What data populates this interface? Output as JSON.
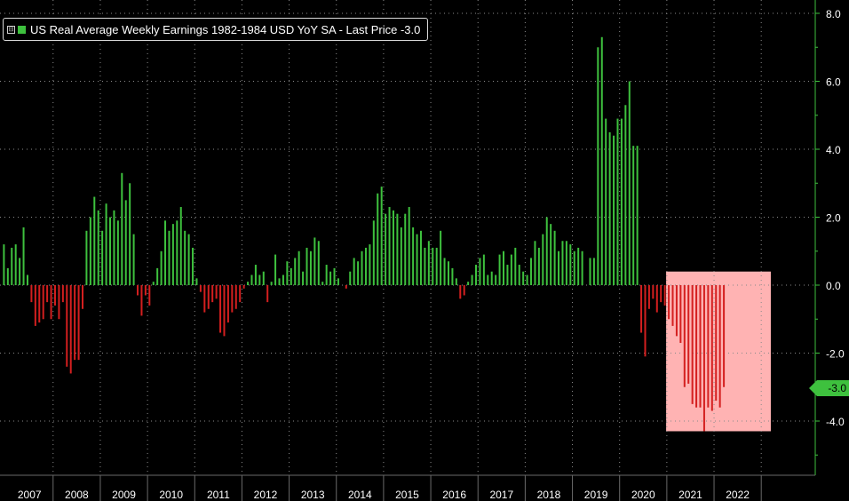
{
  "colors": {
    "positive": "#3ec13e",
    "negative": "#d41f1f",
    "highlight": "#ffb3b3",
    "axis": "#3ec13e",
    "grid": "#8a8a8a",
    "background": "#000000",
    "text": "#ffffff"
  },
  "legend": {
    "collapse_glyph": "⊟",
    "label": "US Real Average Weekly Earnings 1982-1984 USD YoY SA - Last Price -3.0"
  },
  "last_price_tag": "-3.0",
  "chart_data": {
    "type": "bar",
    "title": "",
    "xlabel": "",
    "ylabel": "",
    "ylim": [
      -5.5,
      8.2
    ],
    "grid": true,
    "legend_position": "top-left",
    "y_ticks": [
      "8.0",
      "6.0",
      "4.0",
      "2.0",
      "0.0",
      "-2.0",
      "-4.0"
    ],
    "x_ticks": [
      "2007",
      "2008",
      "2009",
      "2010",
      "2011",
      "2012",
      "2013",
      "2014",
      "2015",
      "2016",
      "2017",
      "2018",
      "2019",
      "2020",
      "2021",
      "2022"
    ],
    "start_month": "2006-12",
    "series": [
      {
        "name": "US Real Average Weekly Earnings 1982-1984 USD YoY SA",
        "frequency": "monthly",
        "values": [
          1.2,
          0.5,
          1.1,
          1.2,
          0.8,
          1.7,
          0.3,
          -0.5,
          -1.2,
          -1.1,
          -1.0,
          -0.5,
          -1.0,
          -0.6,
          -1.0,
          -0.5,
          -2.4,
          -2.6,
          -2.2,
          -2.2,
          -0.7,
          1.6,
          2.0,
          2.6,
          2.2,
          1.6,
          2.4,
          2.0,
          2.2,
          1.9,
          3.3,
          2.5,
          3.0,
          1.5,
          -0.3,
          -0.9,
          -0.3,
          -0.6,
          0.1,
          0.5,
          1.0,
          1.9,
          1.6,
          1.8,
          1.9,
          2.3,
          1.6,
          1.5,
          1.1,
          0.2,
          -0.2,
          -0.8,
          -0.7,
          -0.5,
          -0.4,
          -1.4,
          -1.5,
          -1.1,
          -0.8,
          -0.7,
          -0.5,
          -0.1,
          0.1,
          0.3,
          0.6,
          0.3,
          0.4,
          -0.5,
          0.1,
          0.9,
          0.2,
          0.3,
          0.7,
          0.5,
          0.8,
          1.0,
          0.4,
          1.1,
          1.0,
          1.4,
          1.3,
          0.1,
          0.6,
          0.4,
          0.5,
          0.2,
          0.0,
          -0.1,
          0.4,
          0.8,
          0.7,
          1.0,
          1.1,
          1.2,
          1.9,
          2.7,
          2.9,
          2.1,
          2.3,
          2.2,
          2.1,
          1.7,
          2.1,
          2.3,
          1.7,
          1.5,
          1.6,
          1.1,
          1.3,
          1.1,
          1.1,
          1.6,
          0.8,
          0.7,
          0.5,
          0.2,
          -0.4,
          -0.3,
          0.1,
          0.3,
          0.6,
          0.8,
          0.9,
          0.3,
          0.4,
          0.3,
          0.9,
          1.0,
          0.6,
          0.9,
          1.1,
          0.6,
          0.4,
          0.3,
          0.8,
          1.3,
          1.1,
          1.5,
          2.0,
          1.8,
          1.6,
          1.0,
          1.3,
          1.3,
          1.2,
          1.0,
          1.1,
          1.0,
          0.0,
          0.8,
          0.8,
          7.0,
          7.3,
          4.9,
          4.5,
          4.4,
          4.9,
          4.9,
          5.3,
          6.0,
          4.1,
          4.1,
          -1.4,
          -2.1,
          -0.7,
          -0.4,
          -0.8,
          -0.5,
          -0.6,
          -1.0,
          -1.2,
          -1.5,
          -1.7,
          -3.0,
          -2.9,
          -3.5,
          -3.6,
          -3.6,
          -4.3,
          -3.6,
          -3.7,
          -3.4,
          -3.6,
          -3.0
        ]
      }
    ],
    "annotations": [
      {
        "type": "shaded_region",
        "x_from": "2021-01",
        "x_to": "2022-12",
        "y_from": -4.3,
        "y_to": 0.4,
        "color": "#ffb3b3"
      }
    ]
  }
}
